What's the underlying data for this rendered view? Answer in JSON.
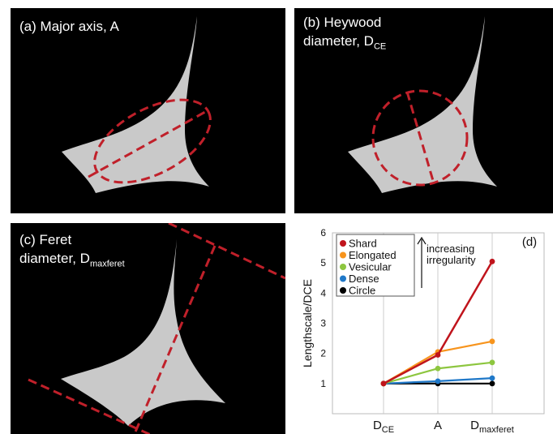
{
  "panels": [
    {
      "id": "a",
      "line1": "(a) Major axis, A"
    },
    {
      "id": "b",
      "line1": "(b) Heywood",
      "line2": "diameter, D",
      "sub": "CE"
    },
    {
      "id": "c",
      "line1": "(c) Feret",
      "line2": "diameter, D",
      "sub": "maxferet"
    }
  ],
  "colors": {
    "background": "#000000",
    "shape": "#c9c9c9",
    "annotation": "#c0202a"
  },
  "chart_data": {
    "type": "line",
    "panel_label": "(d)",
    "ylabel": "Lengthscale/DCE",
    "ylim": [
      0,
      6
    ],
    "yticks": [
      "1",
      "2",
      "3",
      "4",
      "5",
      "6"
    ],
    "categories": [
      {
        "main": "D",
        "sub": "CE"
      },
      {
        "main": "A",
        "sub": ""
      },
      {
        "main": "D",
        "sub": "maxferet"
      }
    ],
    "series": [
      {
        "name": "Shard",
        "color": "#c0141c",
        "values": [
          1.0,
          1.95,
          5.05
        ]
      },
      {
        "name": "Elongated",
        "color": "#f7941d",
        "values": [
          1.0,
          2.05,
          2.4
        ]
      },
      {
        "name": "Vesicular",
        "color": "#8dc63f",
        "values": [
          1.0,
          1.5,
          1.7
        ]
      },
      {
        "name": "Dense",
        "color": "#1f78c8",
        "values": [
          1.0,
          1.08,
          1.18
        ]
      },
      {
        "name": "Circle",
        "color": "#000000",
        "values": [
          1.0,
          1.0,
          1.0
        ]
      }
    ],
    "annotation": [
      "increasing",
      "irregularity"
    ],
    "grid": "vertical",
    "legend": "top-left"
  }
}
